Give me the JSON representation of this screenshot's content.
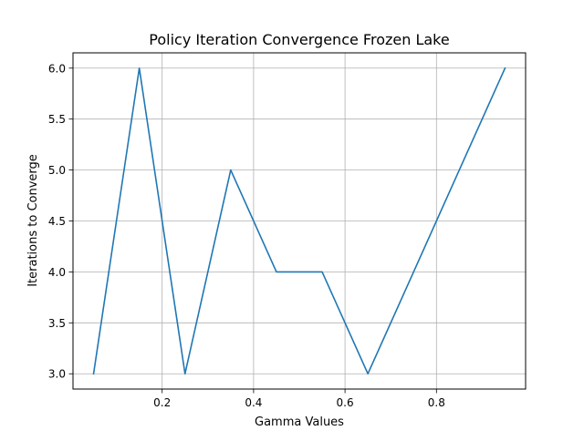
{
  "chart_data": {
    "type": "line",
    "title": "Policy Iteration Convergence Frozen Lake",
    "xlabel": "Gamma Values",
    "ylabel": "Iterations to Converge",
    "x": [
      0.05,
      0.15,
      0.25,
      0.35,
      0.45,
      0.55,
      0.65,
      0.75,
      0.85,
      0.95
    ],
    "series": [
      {
        "values": [
          3.0,
          6.0,
          3.0,
          5.0,
          4.0,
          4.0,
          3.0,
          4.0,
          5.0,
          6.0
        ]
      }
    ],
    "xlim": [
      0.005,
      0.995
    ],
    "ylim": [
      2.85,
      6.15
    ],
    "xticks": [
      0.2,
      0.4,
      0.6,
      0.8
    ],
    "xtick_labels": [
      "0.2",
      "0.4",
      "0.6",
      "0.8"
    ],
    "yticks": [
      3.0,
      3.5,
      4.0,
      4.5,
      5.0,
      5.5,
      6.0
    ],
    "ytick_labels": [
      "3.0",
      "3.5",
      "4.0",
      "4.5",
      "5.0",
      "5.5",
      "6.0"
    ],
    "grid": true,
    "legend": "none",
    "line_color": "#1f77b4",
    "grid_color": "#b0b0b0"
  }
}
